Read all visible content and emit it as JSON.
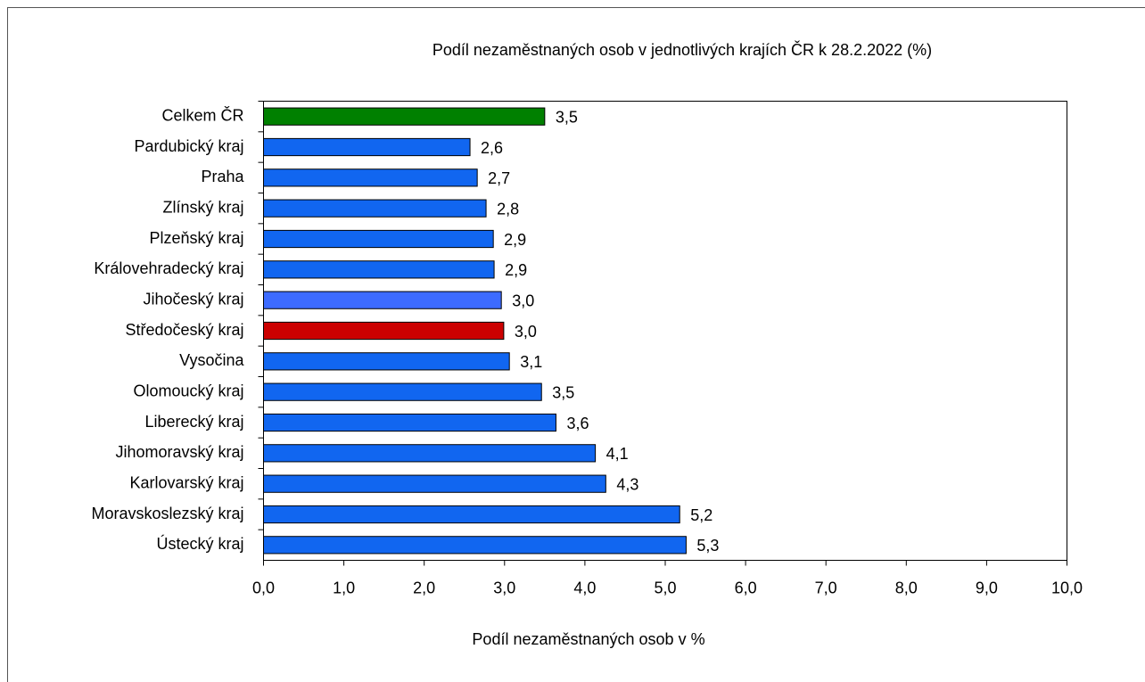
{
  "chart_data": {
    "type": "hbar",
    "title": "Podíl nezaměstnaných osob v jednotlivých krajích ČR k 28.2.2022 (%)",
    "x_label": "Podíl nezaměstnaných osob v %",
    "categories": [
      "Celkem ČR",
      "Pardubický kraj",
      "Praha",
      "Zlínský kraj",
      "Plzeňský kraj",
      "Královehradecký kraj",
      "Jihočeský kraj",
      "Středočeský kraj",
      "Vysočina",
      "Olomoucký kraj",
      "Liberecký kraj",
      "Jihomoravský kraj",
      "Karlovarský kraj",
      "Moravskoslezský kraj",
      "Ústecký kraj"
    ],
    "values": [
      3.5,
      2.57,
      2.66,
      2.77,
      2.86,
      2.87,
      2.96,
      2.99,
      3.06,
      3.46,
      3.64,
      4.13,
      4.26,
      5.18,
      5.26
    ],
    "value_labels": [
      "3,5",
      "2,6",
      "2,7",
      "2,8",
      "2,9",
      "2,9",
      "3,0",
      "3,0",
      "3,1",
      "3,5",
      "3,6",
      "4,1",
      "4,3",
      "5,2",
      "5,3"
    ],
    "colors": [
      "#008000",
      "#1166f0",
      "#1166f0",
      "#1166f0",
      "#1166f0",
      "#1166f0",
      "#3d6bff",
      "#cc0000",
      "#1166f0",
      "#1166f0",
      "#1166f0",
      "#1166f0",
      "#1166f0",
      "#1166f0",
      "#1166f0"
    ],
    "xlim": [
      0,
      10
    ],
    "xticks": [
      {
        "value": 0,
        "label": "0,0"
      },
      {
        "value": 1,
        "label": "1,0"
      },
      {
        "value": 2,
        "label": "2,0"
      },
      {
        "value": 3,
        "label": "3,0"
      },
      {
        "value": 4,
        "label": "4,0"
      },
      {
        "value": 5,
        "label": "5,0"
      },
      {
        "value": 6,
        "label": "6,0"
      },
      {
        "value": 7,
        "label": "7,0"
      },
      {
        "value": 8,
        "label": "8,0"
      },
      {
        "value": 9,
        "label": "9,0"
      },
      {
        "value": 10,
        "label": "10,0"
      }
    ]
  }
}
